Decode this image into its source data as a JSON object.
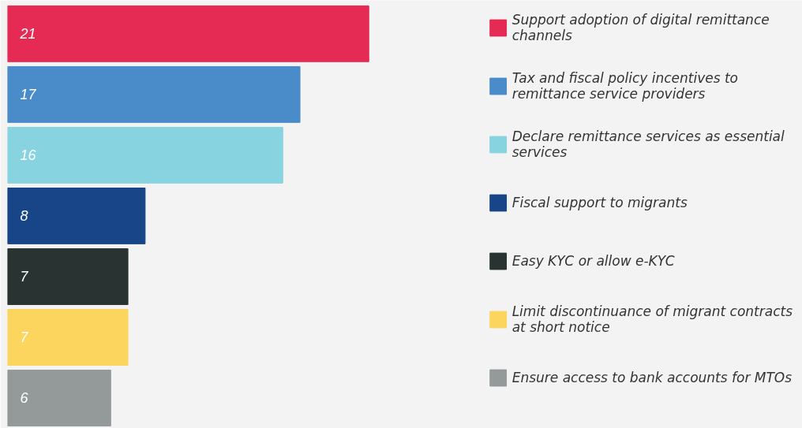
{
  "chart_data": {
    "type": "bar",
    "orientation": "horizontal",
    "data_labels": true,
    "legend": "right",
    "grid": false,
    "stacked": true,
    "categories": [
      null,
      null,
      null,
      null,
      null,
      null,
      null
    ],
    "series": [
      {
        "name": "Support adoption of digital remittance channels",
        "color": "#e52b54",
        "values": [
          21,
          null,
          null,
          null,
          null,
          null,
          null
        ]
      },
      {
        "name": "Tax and fiscal policy incentives to remittance service providers",
        "color": "#4a8bc9",
        "values": [
          null,
          17,
          null,
          null,
          null,
          null,
          null
        ]
      },
      {
        "name": "Declare remittance services as essential services",
        "color": "#87d3df",
        "values": [
          null,
          null,
          16,
          null,
          null,
          null,
          null
        ]
      },
      {
        "name": "Fiscal support to migrants",
        "color": "#174587",
        "values": [
          null,
          null,
          null,
          8,
          null,
          null,
          null
        ]
      },
      {
        "name": "Easy KYC or allow e-KYC",
        "color": "#293331",
        "values": [
          null,
          null,
          null,
          null,
          7,
          null,
          null
        ]
      },
      {
        "name": "Limit discontinuance of migrant contracts at short notice",
        "color": "#fbd55d",
        "values": [
          null,
          null,
          null,
          null,
          null,
          7,
          null
        ]
      },
      {
        "name": "Ensure access to bank accounts for MTOs",
        "color": "#949a9a",
        "values": [
          null,
          null,
          null,
          null,
          null,
          null,
          6
        ]
      }
    ]
  }
}
